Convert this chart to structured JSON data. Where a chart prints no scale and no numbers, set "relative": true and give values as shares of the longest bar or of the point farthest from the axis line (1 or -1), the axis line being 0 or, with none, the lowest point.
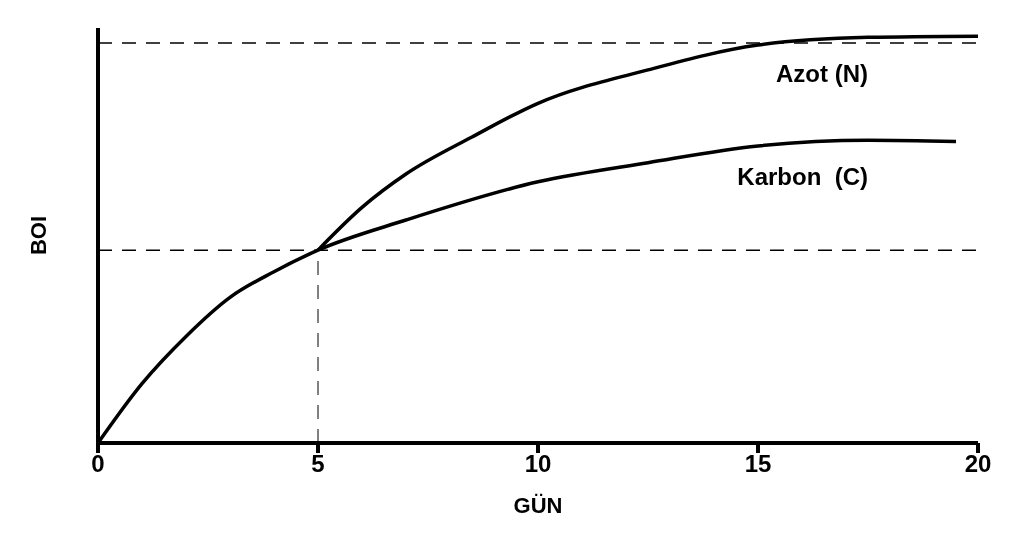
{
  "chart_data": {
    "type": "line",
    "relative": true,
    "xlabel": "GÜN",
    "ylabel": "BOI",
    "xlim": [
      0,
      20
    ],
    "xticks": [
      0,
      5,
      10,
      15,
      20
    ],
    "series": [
      {
        "name": "Azot (N)",
        "color": "#000000",
        "x": [
          5,
          6,
          7,
          8.5,
          10,
          12.5,
          15,
          17.5,
          20
        ],
        "values": [
          0.474,
          0.579,
          0.661,
          0.752,
          0.835,
          0.917,
          0.978,
          0.997,
          1
        ]
      },
      {
        "name": "Karbon  (C)",
        "color": "#000000",
        "x": [
          0,
          1,
          2,
          3,
          4,
          5,
          7,
          10,
          12.5,
          15,
          17.5,
          19.5
        ],
        "values": [
          0,
          0.146,
          0.262,
          0.358,
          0.421,
          0.474,
          0.548,
          0.642,
          0.689,
          0.73,
          0.744,
          0.741
        ]
      }
    ],
    "ref_lines": [
      {
        "axis": "y",
        "value": 0.983,
        "line_style": "dashed"
      },
      {
        "axis": "y",
        "value": 0.474,
        "line_style": "dashed"
      },
      {
        "axis": "x",
        "value": 5,
        "line_style": "dashed"
      }
    ]
  }
}
